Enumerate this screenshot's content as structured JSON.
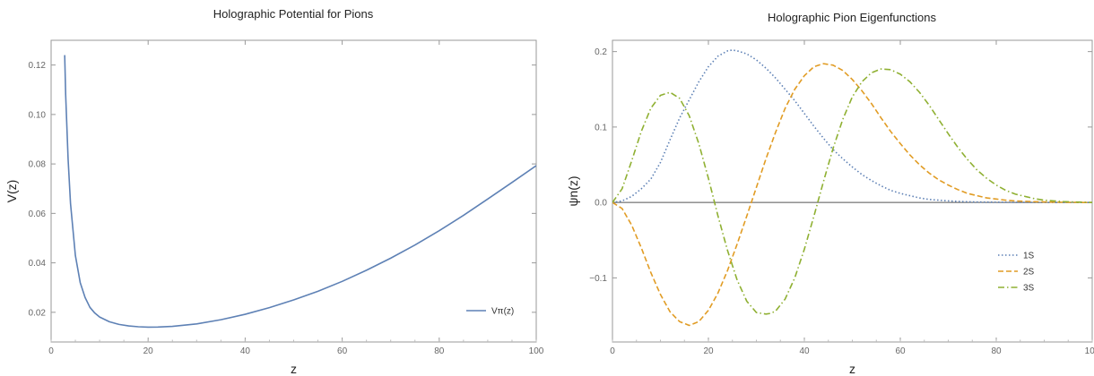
{
  "chart_data": [
    {
      "type": "line",
      "title": "Holographic Potential for Pions",
      "xlabel": "z",
      "ylabel": "V(z)",
      "xlim": [
        0,
        100
      ],
      "ylim": [
        0.008,
        0.13
      ],
      "xticks": [
        "0",
        "20",
        "40",
        "60",
        "80",
        "100"
      ],
      "yticks": [
        "0.02",
        "0.04",
        "0.06",
        "0.08",
        "0.10",
        "0.12"
      ],
      "legend_position": "bottom-right",
      "series": [
        {
          "name": "Vπ(z)",
          "color": "#5e81b5",
          "dash": "solid",
          "x": [
            2.8,
            3,
            3.5,
            4,
            5,
            6,
            7,
            8,
            9,
            10,
            12,
            14,
            16,
            18,
            20,
            22,
            25,
            30,
            35,
            40,
            45,
            50,
            55,
            60,
            65,
            70,
            75,
            80,
            85,
            90,
            95,
            100
          ],
          "y": [
            0.124,
            0.108,
            0.082,
            0.064,
            0.043,
            0.032,
            0.026,
            0.022,
            0.0197,
            0.0181,
            0.0162,
            0.0151,
            0.0145,
            0.01415,
            0.014,
            0.01405,
            0.0143,
            0.0153,
            0.017,
            0.0192,
            0.0219,
            0.025,
            0.0285,
            0.0325,
            0.037,
            0.0419,
            0.0472,
            0.053,
            0.0592,
            0.0658,
            0.0725,
            0.0793
          ]
        }
      ]
    },
    {
      "type": "line",
      "title": "Holographic Pion Eigenfunctions",
      "xlabel": "z",
      "ylabel": "ψn(z)",
      "xlim": [
        0,
        100
      ],
      "ylim": [
        -0.185,
        0.215
      ],
      "xticks": [
        "0",
        "20",
        "40",
        "60",
        "80",
        "100"
      ],
      "yticks": [
        "−0.1",
        "0.0",
        "0.1",
        "0.2"
      ],
      "legend_position": "right",
      "series": [
        {
          "name": "1S",
          "color": "#5e81b5",
          "dash": "dotted",
          "x": [
            0,
            2,
            4,
            6,
            8,
            10,
            12,
            14,
            16,
            18,
            20,
            22,
            24,
            25,
            26,
            28,
            30,
            32,
            34,
            36,
            38,
            40,
            42,
            44,
            46,
            48,
            50,
            52,
            54,
            56,
            58,
            60,
            62,
            64,
            66,
            68,
            70,
            72,
            74,
            76,
            78,
            80,
            82,
            84,
            86,
            88,
            90,
            92,
            94,
            96,
            98,
            100
          ],
          "y": [
            0.0,
            0.002,
            0.008,
            0.018,
            0.031,
            0.053,
            0.083,
            0.112,
            0.136,
            0.16,
            0.18,
            0.194,
            0.201,
            0.202,
            0.201,
            0.197,
            0.189,
            0.178,
            0.165,
            0.15,
            0.135,
            0.118,
            0.101,
            0.085,
            0.07,
            0.058,
            0.047,
            0.037,
            0.029,
            0.022,
            0.016,
            0.012,
            0.009,
            0.006,
            0.004,
            0.003,
            0.0021,
            0.0014,
            0.0009,
            0.0006,
            0.0004,
            0.0003,
            0.0002,
            0.0001,
            0.0001,
            0.0,
            0.0,
            0.0,
            0.0,
            0.0,
            0.0,
            0.0
          ]
        },
        {
          "name": "2S",
          "color": "#e19c24",
          "dash": "dashed",
          "x": [
            0,
            2,
            4,
            6,
            8,
            10,
            12,
            14,
            16,
            18,
            20,
            22,
            24,
            26,
            28,
            30,
            32,
            34,
            36,
            38,
            40,
            42,
            44,
            46,
            48,
            50,
            52,
            54,
            56,
            58,
            60,
            62,
            64,
            66,
            68,
            70,
            72,
            74,
            76,
            78,
            80,
            82,
            84,
            86,
            88,
            90,
            92,
            94,
            96,
            98,
            100
          ],
          "y": [
            0.0,
            -0.008,
            -0.03,
            -0.06,
            -0.093,
            -0.122,
            -0.145,
            -0.158,
            -0.163,
            -0.158,
            -0.143,
            -0.12,
            -0.09,
            -0.055,
            -0.018,
            0.02,
            0.058,
            0.093,
            0.125,
            0.15,
            0.168,
            0.18,
            0.184,
            0.182,
            0.175,
            0.163,
            0.148,
            0.131,
            0.112,
            0.094,
            0.078,
            0.063,
            0.05,
            0.039,
            0.03,
            0.023,
            0.017,
            0.012,
            0.009,
            0.006,
            0.0045,
            0.003,
            0.002,
            0.0015,
            0.001,
            0.0007,
            0.0004,
            0.0002,
            0.0001,
            0.0,
            0.0
          ]
        },
        {
          "name": "3S",
          "color": "#8fb032",
          "dash": "dashdot",
          "x": [
            0,
            2,
            4,
            6,
            8,
            10,
            12,
            14,
            16,
            18,
            20,
            22,
            24,
            26,
            28,
            30,
            32,
            33,
            34,
            36,
            38,
            40,
            42,
            44,
            46,
            48,
            50,
            52,
            54,
            56,
            58,
            60,
            62,
            64,
            66,
            68,
            70,
            72,
            74,
            76,
            78,
            80,
            82,
            84,
            86,
            88,
            90,
            92,
            94,
            96,
            98,
            100
          ],
          "y": [
            0.0,
            0.018,
            0.055,
            0.094,
            0.125,
            0.142,
            0.146,
            0.138,
            0.115,
            0.078,
            0.032,
            -0.018,
            -0.064,
            -0.103,
            -0.131,
            -0.146,
            -0.148,
            -0.147,
            -0.144,
            -0.128,
            -0.1,
            -0.062,
            -0.018,
            0.028,
            0.072,
            0.11,
            0.14,
            0.16,
            0.172,
            0.177,
            0.176,
            0.17,
            0.16,
            0.146,
            0.129,
            0.11,
            0.091,
            0.073,
            0.057,
            0.043,
            0.032,
            0.023,
            0.016,
            0.011,
            0.008,
            0.005,
            0.003,
            0.002,
            0.0012,
            0.0007,
            0.0003,
            0.0
          ]
        }
      ]
    }
  ]
}
